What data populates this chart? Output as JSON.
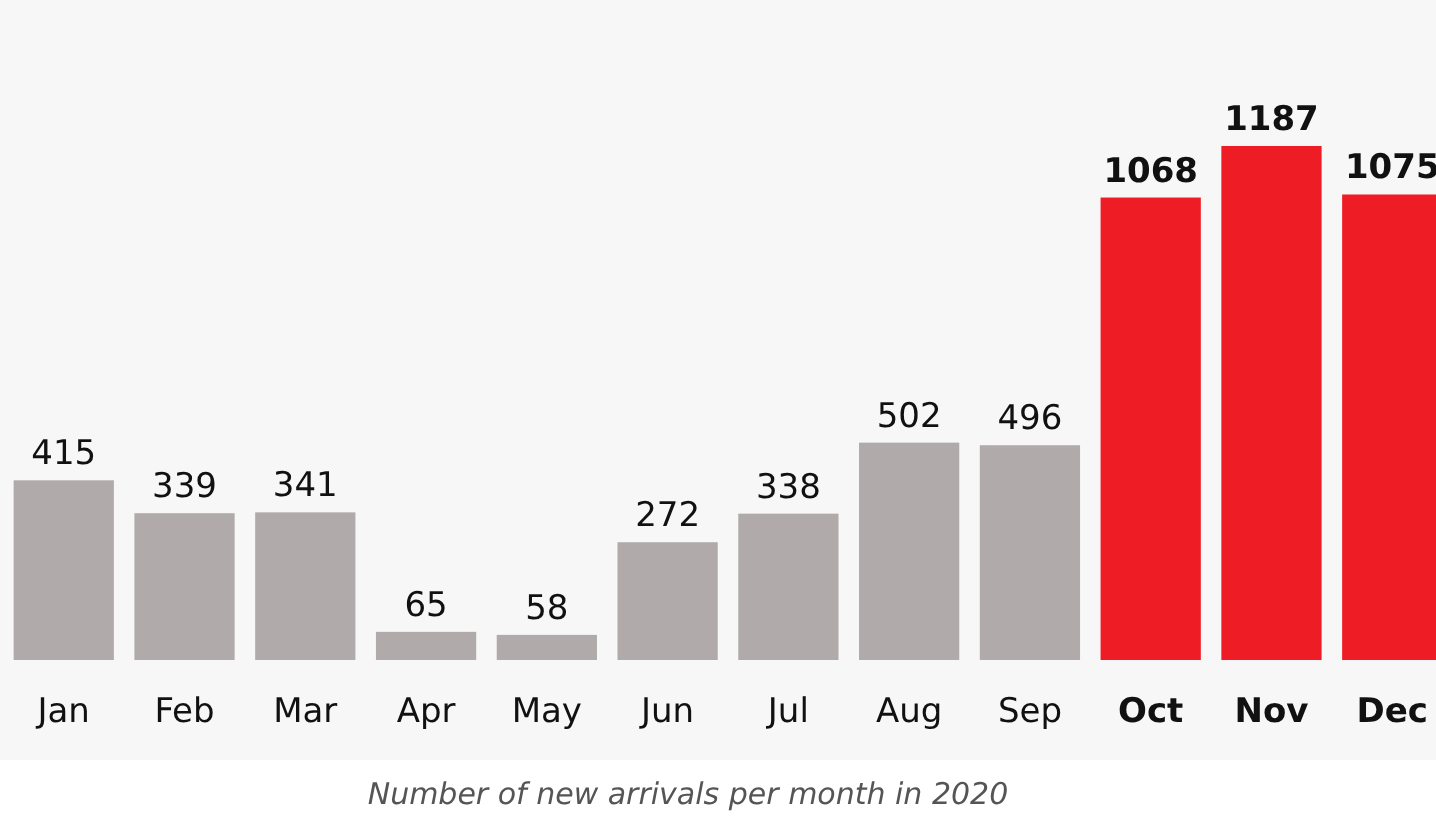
{
  "chart_data": {
    "type": "bar",
    "categories": [
      "Jan",
      "Feb",
      "Mar",
      "Apr",
      "May",
      "Jun",
      "Jul",
      "Aug",
      "Sep",
      "Oct",
      "Nov",
      "Dec"
    ],
    "values": [
      415,
      339,
      341,
      65,
      58,
      272,
      338,
      502,
      496,
      1068,
      1187,
      1075
    ],
    "colors": [
      "#b0abaa",
      "#b0abaa",
      "#b0abaa",
      "#b0abaa",
      "#b0abaa",
      "#b0abaa",
      "#b0abaa",
      "#b0abaa",
      "#b0abaa",
      "#ee1c25",
      "#ee1c25",
      "#ee1c25"
    ],
    "data_labels": true,
    "annotations": [
      "Number of new arrivals per month in 2020"
    ]
  }
}
